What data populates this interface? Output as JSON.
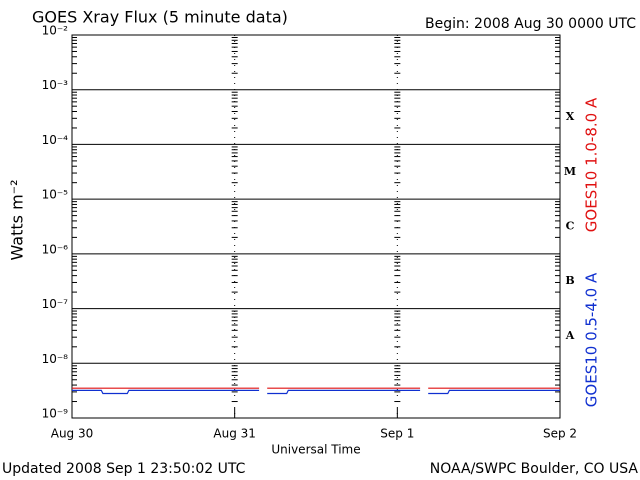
{
  "chart_data": {
    "type": "line",
    "title": "GOES Xray Flux (5 minute data)",
    "begin": "Begin:  2008 Aug 30 0000 UTC",
    "xlabel": "Universal Time",
    "ylabel": "Watts m⁻²",
    "updated": "Updated 2008 Sep  1 23:50:02 UTC",
    "source": "NOAA/SWPC Boulder, CO USA",
    "log_y": true,
    "grid": true,
    "xlim": [
      0,
      3
    ],
    "xticks": [
      {
        "value": 0,
        "label": "Aug 30"
      },
      {
        "value": 1,
        "label": "Aug 31"
      },
      {
        "value": 2,
        "label": "Sep 1"
      },
      {
        "value": 3,
        "label": "Sep 2"
      }
    ],
    "ylim": [
      1e-09,
      0.01
    ],
    "yticks": [
      {
        "value": 1e-09,
        "label": "10⁻⁹"
      },
      {
        "value": 1e-08,
        "label": "10⁻⁸"
      },
      {
        "value": 1e-07,
        "label": "10⁻⁷"
      },
      {
        "value": 1e-06,
        "label": "10⁻⁶"
      },
      {
        "value": 1e-05,
        "label": "10⁻⁵"
      },
      {
        "value": 0.0001,
        "label": "10⁻⁴"
      },
      {
        "value": 0.001,
        "label": "10⁻³"
      },
      {
        "value": 0.01,
        "label": "10⁻²"
      }
    ],
    "flare_classes": [
      "A",
      "B",
      "C",
      "M",
      "X"
    ],
    "series": [
      {
        "name": "GOES10 1.0-8.0 A",
        "color": "#e01010",
        "x": [
          0,
          1.15,
          1.16,
          1.2,
          2.14,
          2.15,
          2.19,
          3
        ],
        "values": [
          3.5e-09,
          3.5e-09,
          null,
          3.5e-09,
          3.5e-09,
          null,
          3.5e-09,
          3.5e-09
        ]
      },
      {
        "name": "GOES10 0.5-4.0 A",
        "color": "#1030d0",
        "x": [
          0,
          0.18,
          0.19,
          0.34,
          0.35,
          1.15,
          1.16,
          1.2,
          1.32,
          1.33,
          2.14,
          2.15,
          2.19,
          2.31,
          2.32,
          3
        ],
        "values": [
          3.2e-09,
          3.2e-09,
          2.8e-09,
          2.8e-09,
          3.2e-09,
          3.2e-09,
          null,
          2.8e-09,
          2.8e-09,
          3.2e-09,
          3.2e-09,
          null,
          2.8e-09,
          2.8e-09,
          3.2e-09,
          3.2e-09
        ]
      }
    ]
  }
}
